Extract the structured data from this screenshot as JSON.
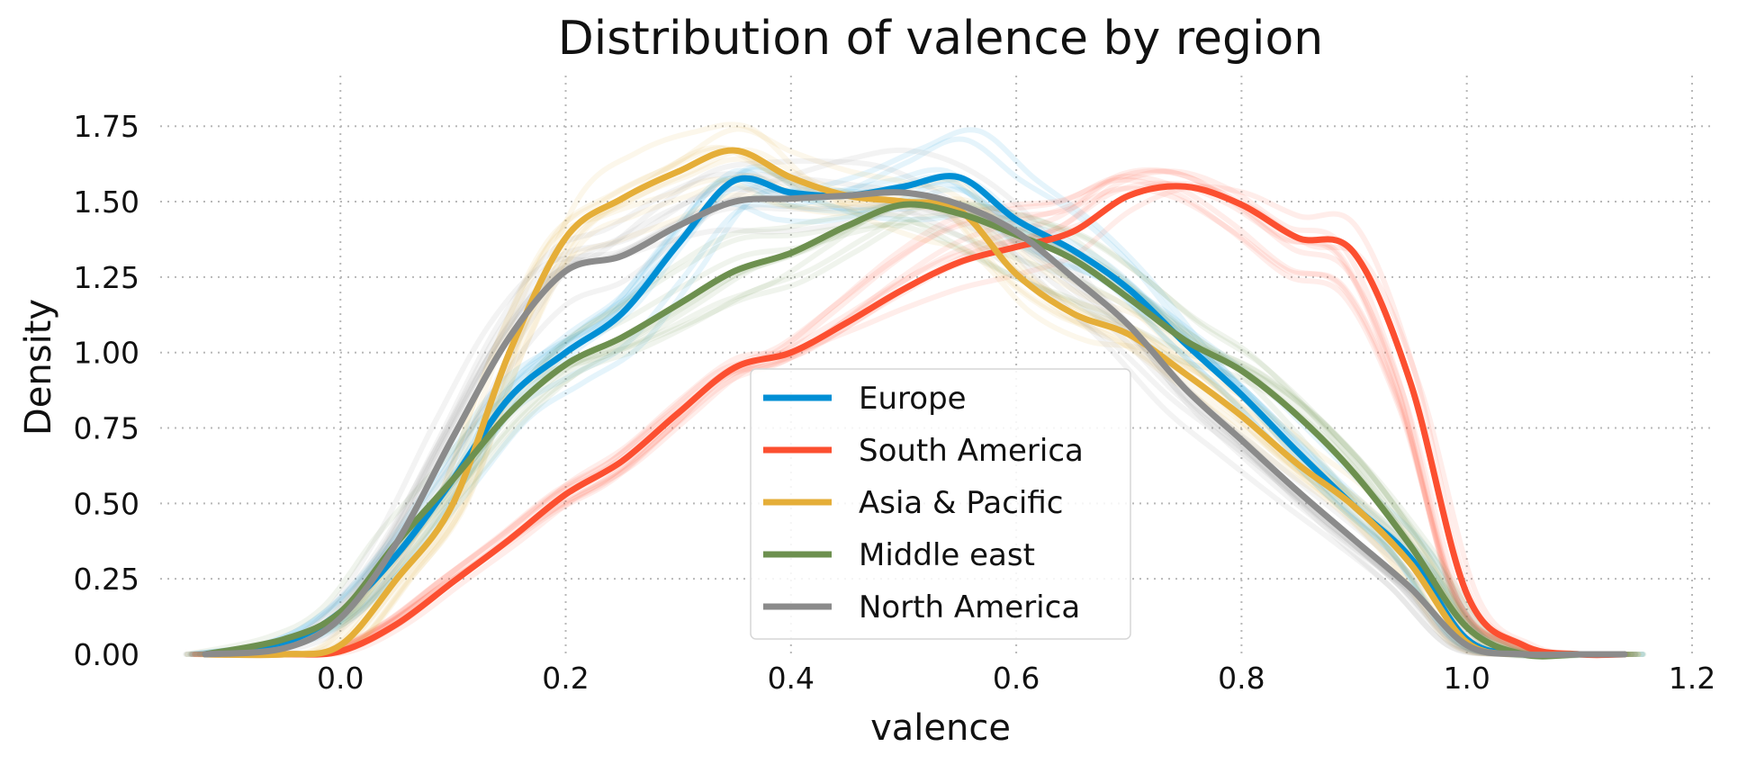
{
  "chart_data": {
    "type": "line",
    "title": "Distribution of valence by region",
    "xlabel": "valence",
    "ylabel": "Density",
    "xlim": [
      -0.16,
      1.22
    ],
    "ylim": [
      0,
      1.87
    ],
    "xticks": [
      "0.0",
      "0.2",
      "0.4",
      "0.6",
      "0.8",
      "1.0",
      "1.2"
    ],
    "yticks": [
      "0.00",
      "0.25",
      "0.50",
      "0.75",
      "1.00",
      "1.25",
      "1.50",
      "1.75"
    ],
    "grid": true,
    "legend_position": "bottom-center",
    "x": [
      -0.12,
      -0.05,
      0.0,
      0.05,
      0.1,
      0.15,
      0.2,
      0.25,
      0.3,
      0.35,
      0.4,
      0.45,
      0.5,
      0.55,
      0.6,
      0.65,
      0.7,
      0.75,
      0.8,
      0.85,
      0.9,
      0.95,
      1.0,
      1.05,
      1.1,
      1.14
    ],
    "series": [
      {
        "name": "Europe",
        "color": "#008fd5",
        "values": [
          0.0,
          0.04,
          0.14,
          0.33,
          0.58,
          0.85,
          1.0,
          1.13,
          1.36,
          1.57,
          1.53,
          1.52,
          1.55,
          1.58,
          1.44,
          1.34,
          1.21,
          1.03,
          0.86,
          0.67,
          0.49,
          0.32,
          0.05,
          0.0,
          0.0,
          0.0
        ]
      },
      {
        "name": "South America",
        "color": "#fc4f30",
        "values": [
          0.0,
          0.0,
          0.01,
          0.1,
          0.24,
          0.38,
          0.53,
          0.64,
          0.8,
          0.95,
          1.0,
          1.1,
          1.21,
          1.3,
          1.35,
          1.4,
          1.52,
          1.55,
          1.49,
          1.38,
          1.33,
          0.9,
          0.2,
          0.03,
          0.0,
          0.0
        ]
      },
      {
        "name": "Asia & Pacific",
        "color": "#e5ae38",
        "values": [
          0.0,
          0.0,
          0.03,
          0.25,
          0.5,
          1.0,
          1.38,
          1.51,
          1.6,
          1.67,
          1.58,
          1.52,
          1.5,
          1.47,
          1.26,
          1.13,
          1.06,
          0.93,
          0.79,
          0.63,
          0.49,
          0.3,
          0.04,
          0.0,
          0.0,
          0.0
        ]
      },
      {
        "name": "Middle east",
        "color": "#6d904f",
        "values": [
          0.0,
          0.05,
          0.14,
          0.37,
          0.58,
          0.8,
          0.96,
          1.05,
          1.16,
          1.27,
          1.33,
          1.42,
          1.49,
          1.46,
          1.39,
          1.31,
          1.18,
          1.04,
          0.94,
          0.79,
          0.6,
          0.36,
          0.09,
          0.0,
          0.0,
          0.0
        ]
      },
      {
        "name": "North America",
        "color": "#8b8b8b",
        "values": [
          0.0,
          0.02,
          0.12,
          0.37,
          0.72,
          1.05,
          1.27,
          1.32,
          1.42,
          1.5,
          1.51,
          1.52,
          1.53,
          1.49,
          1.4,
          1.25,
          1.09,
          0.88,
          0.71,
          0.54,
          0.38,
          0.22,
          0.03,
          0.0,
          0.0,
          0.0
        ]
      }
    ]
  }
}
